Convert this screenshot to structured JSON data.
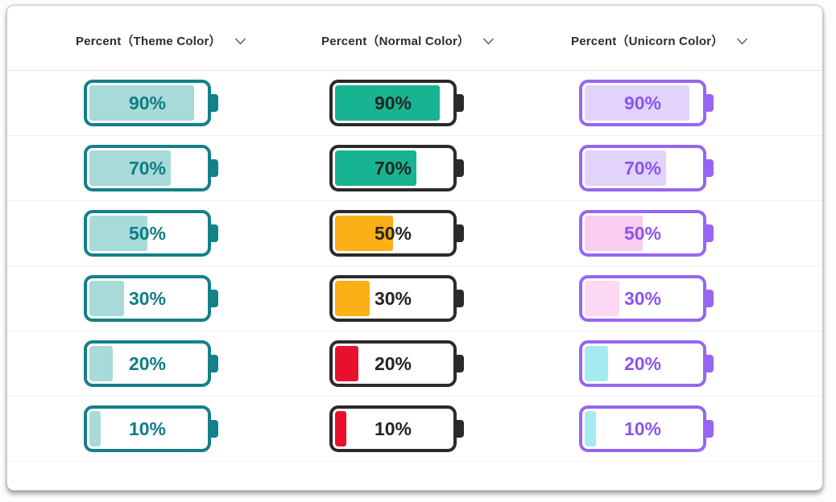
{
  "table": {
    "columns": [
      {
        "label": "Percent（Theme Color）",
        "border": "#14808A",
        "text_color": "#0D7D85"
      },
      {
        "label": "Percent（Normal Color）",
        "border": "#2B2A29",
        "text_color": "#252423"
      },
      {
        "label": "Percent（Unicorn Color）",
        "border": "#9666F2",
        "text_color": "#8A55F0"
      }
    ],
    "rows": [
      {
        "label": "90%",
        "pct": 90,
        "fills": [
          "#A7DAD9",
          "#18B491",
          "#E2D3FB"
        ]
      },
      {
        "label": "70%",
        "pct": 70,
        "fills": [
          "#A7DAD9",
          "#18B491",
          "#E2D3FB"
        ]
      },
      {
        "label": "50%",
        "pct": 50,
        "fills": [
          "#A7DAD9",
          "#FBB017",
          "#FACCEF"
        ]
      },
      {
        "label": "30%",
        "pct": 30,
        "fills": [
          "#A7DAD9",
          "#FBB017",
          "#FCD8F4"
        ]
      },
      {
        "label": "20%",
        "pct": 20,
        "fills": [
          "#A7DAD9",
          "#E8112D",
          "#A4EBEF"
        ]
      },
      {
        "label": "10%",
        "pct": 10,
        "fills": [
          "#A7DAD9",
          "#E8112D",
          "#A4EBEF"
        ]
      }
    ]
  },
  "icons": {
    "sort_dropdown": "chevron-down"
  },
  "chart_data": {
    "type": "table",
    "title": "",
    "columns": [
      "Percent（Theme Color）",
      "Percent（Normal Color）",
      "Percent（Unicorn Color）"
    ],
    "values": [
      90,
      70,
      50,
      30,
      20,
      10
    ],
    "series": [
      {
        "name": "Percent（Theme Color）",
        "values": [
          90,
          70,
          50,
          30,
          20,
          10
        ]
      },
      {
        "name": "Percent（Normal Color）",
        "values": [
          90,
          70,
          50,
          30,
          20,
          10
        ]
      },
      {
        "name": "Percent（Unicorn Color）",
        "values": [
          90,
          70,
          50,
          30,
          20,
          10
        ]
      }
    ],
    "value_range": [
      0,
      100
    ],
    "layout": "battery gauge per cell, fill width proportional to percent"
  }
}
